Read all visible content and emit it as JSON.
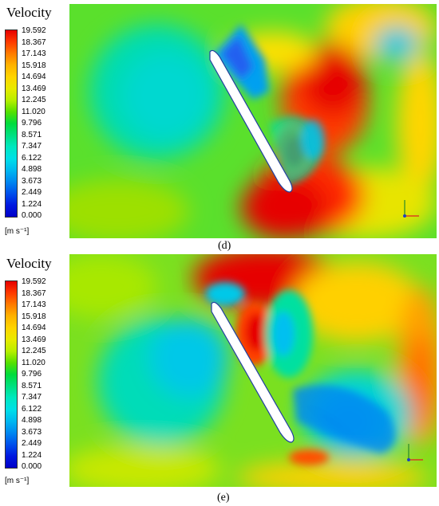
{
  "legend_title": "Velocity",
  "units": "[m s⁻¹]",
  "ticks": [
    "19.592",
    "18.367",
    "17.143",
    "15.918",
    "14.694",
    "13.469",
    "12.245",
    "11.020",
    "9.796",
    "8.571",
    "7.347",
    "6.122",
    "4.898",
    "3.673",
    "2.449",
    "1.224",
    "0.000"
  ],
  "colormap": [
    "#e60000",
    "#ff3a00",
    "#ff7b00",
    "#ffb300",
    "#ffd400",
    "#e8ea00",
    "#b8ef00",
    "#55e000",
    "#00dc3c",
    "#00e080",
    "#00e8c0",
    "#00e0e8",
    "#00b8f0",
    "#0088f0",
    "#0050ec",
    "#0018e0",
    "#0000c8"
  ],
  "panels": [
    {
      "id": "d",
      "caption": "(d)"
    },
    {
      "id": "e",
      "caption": "(e)"
    }
  ]
}
